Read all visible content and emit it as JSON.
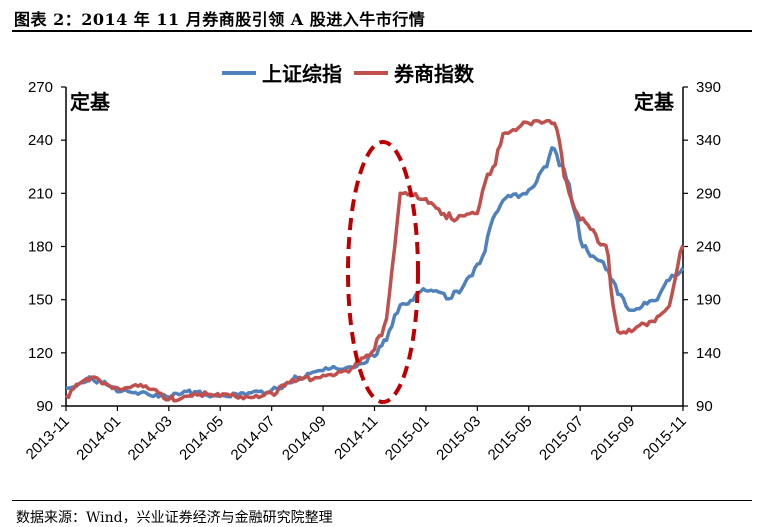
{
  "title": "图表 2：2014 年 11 月券商股引领 A 股进入牛市行情",
  "source": "数据来源：Wind，兴业证券经济与金融研究院整理",
  "legend": [
    {
      "label": "上证综指",
      "color": "#4F81BD"
    },
    {
      "label": "券商指数",
      "color": "#C0504D"
    }
  ],
  "axes": {
    "left_unit": "定基",
    "right_unit": "定基",
    "left_ticks": [
      "270",
      "240",
      "210",
      "180",
      "150",
      "120",
      "90"
    ],
    "right_ticks": [
      "390",
      "340",
      "290",
      "240",
      "190",
      "140",
      "90"
    ],
    "x_ticks": [
      "2013-11",
      "2014-01",
      "2014-03",
      "2014-05",
      "2014-07",
      "2014-09",
      "2014-11",
      "2015-01",
      "2015-03",
      "2015-05",
      "2015-07",
      "2015-09",
      "2015-11"
    ]
  },
  "annotation": {
    "type": "dashed-ellipse",
    "color": "#C00000",
    "around": "2014-11"
  },
  "chart_data": {
    "type": "line",
    "title": "图表 2：2014 年 11 月券商股引领 A 股进入牛市行情",
    "xlabel": "",
    "ylabel_left": "定基",
    "ylabel_right": "定基",
    "ylim_left": [
      90,
      270
    ],
    "ylim_right": [
      90,
      390
    ],
    "grid": false,
    "legend_position": "top",
    "x": [
      "2013-11",
      "2013-12",
      "2014-01",
      "2014-02",
      "2014-03",
      "2014-04",
      "2014-05",
      "2014-06",
      "2014-07",
      "2014-08",
      "2014-09",
      "2014-10",
      "2014-11",
      "2014-11-15",
      "2014-12",
      "2015-01",
      "2015-02",
      "2015-03",
      "2015-04",
      "2015-05",
      "2015-06",
      "2015-06-15",
      "2015-07",
      "2015-08",
      "2015-08-15",
      "2015-09",
      "2015-10",
      "2015-10-15",
      "2015-11"
    ],
    "series": [
      {
        "name": "上证综指",
        "axis": "left",
        "color": "#4F81BD",
        "values": [
          100,
          106,
          98,
          98,
          95,
          98,
          96,
          96,
          99,
          106,
          110,
          112,
          118,
          127,
          147,
          155,
          151,
          170,
          206,
          212,
          235,
          218,
          184,
          167,
          153,
          144,
          150,
          161,
          168
        ]
      },
      {
        "name": "券商指数",
        "axis": "right",
        "color": "#C0504D",
        "values": [
          100,
          117,
          107,
          108,
          96,
          102,
          99,
          99,
          102,
          114,
          119,
          122,
          143,
          172,
          290,
          285,
          266,
          271,
          346,
          356,
          356,
          301,
          265,
          241,
          160,
          160,
          174,
          184,
          241
        ]
      }
    ]
  }
}
